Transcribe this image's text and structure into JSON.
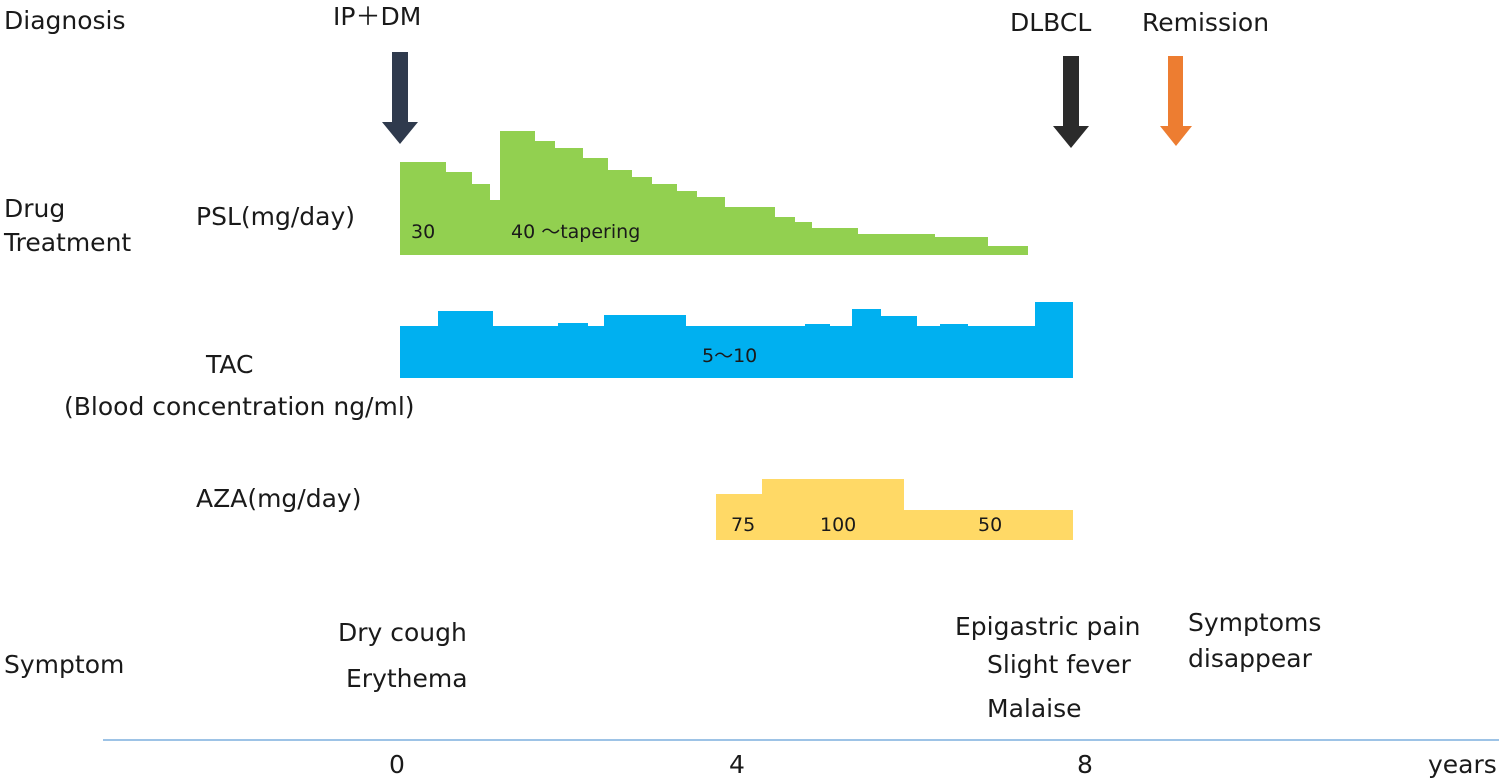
{
  "row_labels": {
    "diagnosis": "Diagnosis",
    "drug_treatment": [
      "Drug",
      "Treatment"
    ],
    "symptom": "Symptom"
  },
  "events": {
    "ip_dm": "IP＋DM",
    "dlbcl": "DLBCL",
    "remission": "Remission"
  },
  "drugs": {
    "psl": {
      "label": "PSL(mg/day)",
      "values": [
        "30",
        "40 ～tapering"
      ],
      "color": "#92d050"
    },
    "tac": {
      "label": "TAC",
      "sublabel": "(Blood concentration ng/ml)",
      "value": "5～10",
      "color": "#00b0f0"
    },
    "aza": {
      "label": "AZA(mg/day)",
      "values": [
        "75",
        "100",
        "50"
      ],
      "color": "#ffd966"
    }
  },
  "symptoms": {
    "at_onset": [
      "Dry cough",
      "Erythema"
    ],
    "at_dlbcl": [
      "Epigastric pain",
      "Slight fever",
      "Malaise"
    ],
    "at_remission": [
      "Symptoms",
      "disappear"
    ]
  },
  "axis": {
    "ticks": [
      "0",
      "4",
      "8"
    ],
    "unit": "years",
    "color": "#9dc3e6"
  },
  "arrow_colors": {
    "diagnosis": "#2f3a4d",
    "dlbcl": "#2b2b2b",
    "remission": "#ed7d31"
  }
}
